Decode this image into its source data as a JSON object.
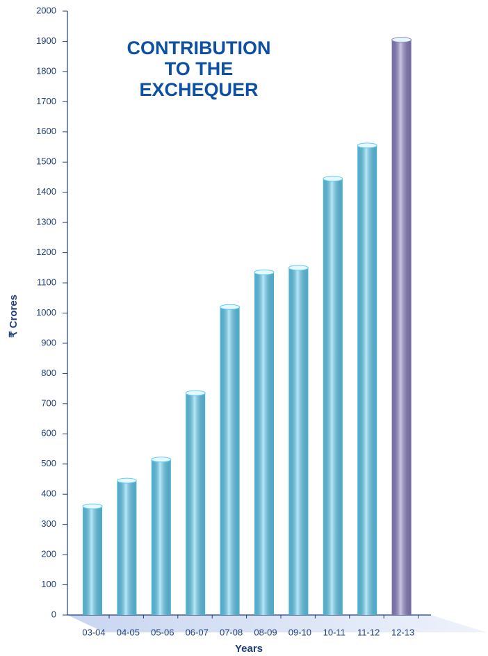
{
  "chart_data": {
    "type": "bar",
    "title": "CONTRIBUTION TO THE EXCHEQUER",
    "x_label": "Years",
    "y_label": "₹ Crores",
    "categories": [
      "03-04",
      "04-05",
      "05-06",
      "06-07",
      "07-08",
      "08-09",
      "09-10",
      "10-11",
      "11-12",
      "12-13"
    ],
    "values": [
      360,
      445,
      515,
      735,
      1020,
      1135,
      1150,
      1445,
      1555,
      1905
    ],
    "colors": [
      "#5ccdf3",
      "#5ccdf3",
      "#5ccdf3",
      "#5ccdf3",
      "#5ccdf3",
      "#5ccdf3",
      "#5ccdf3",
      "#5ccdf3",
      "#5ccdf3",
      "#8a7fc2"
    ],
    "ylim": [
      0,
      2000
    ],
    "yticks": [
      0,
      100,
      200,
      300,
      400,
      500,
      600,
      700,
      800,
      900,
      1000,
      1100,
      1200,
      1300,
      1400,
      1500,
      1600,
      1700,
      1800,
      1900,
      2000
    ]
  }
}
